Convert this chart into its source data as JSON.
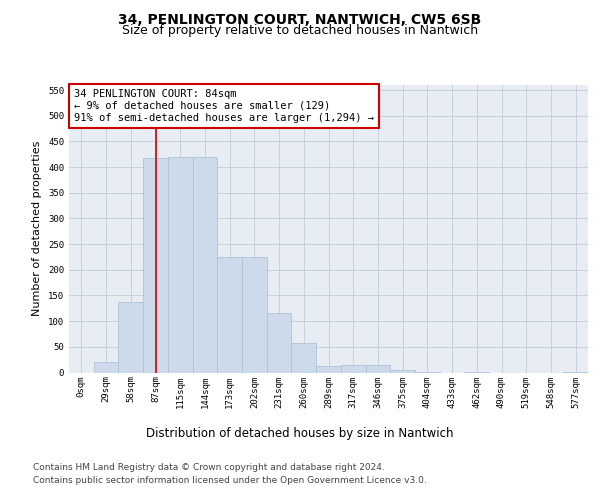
{
  "title": "34, PENLINGTON COURT, NANTWICH, CW5 6SB",
  "subtitle": "Size of property relative to detached houses in Nantwich",
  "xlabel": "Distribution of detached houses by size in Nantwich",
  "ylabel": "Number of detached properties",
  "bar_labels": [
    "0sqm",
    "29sqm",
    "58sqm",
    "87sqm",
    "115sqm",
    "144sqm",
    "173sqm",
    "202sqm",
    "231sqm",
    "260sqm",
    "289sqm",
    "317sqm",
    "346sqm",
    "375sqm",
    "404sqm",
    "433sqm",
    "462sqm",
    "490sqm",
    "519sqm",
    "548sqm",
    "577sqm"
  ],
  "bar_values": [
    0,
    20,
    137,
    417,
    419,
    419,
    225,
    225,
    116,
    57,
    12,
    14,
    14,
    5,
    1,
    0,
    1,
    0,
    0,
    0,
    1
  ],
  "bar_color": "#cddaeb",
  "bar_edgecolor": "#a8bdd6",
  "bar_width": 1.0,
  "vline_x": 3,
  "vline_color": "#cc0000",
  "annotation_text": "34 PENLINGTON COURT: 84sqm\n← 9% of detached houses are smaller (129)\n91% of semi-detached houses are larger (1,294) →",
  "annotation_box_color": "#ffffff",
  "annotation_box_edgecolor": "#cc0000",
  "ylim": [
    0,
    560
  ],
  "yticks": [
    0,
    50,
    100,
    150,
    200,
    250,
    300,
    350,
    400,
    450,
    500,
    550
  ],
  "grid_color": "#c0ccd8",
  "bg_color": "#e8edf4",
  "footer_line1": "Contains HM Land Registry data © Crown copyright and database right 2024.",
  "footer_line2": "Contains public sector information licensed under the Open Government Licence v3.0.",
  "title_fontsize": 10,
  "subtitle_fontsize": 9,
  "xlabel_fontsize": 8.5,
  "ylabel_fontsize": 8,
  "tick_fontsize": 6.5,
  "annot_fontsize": 7.5,
  "footer_fontsize": 6.5
}
